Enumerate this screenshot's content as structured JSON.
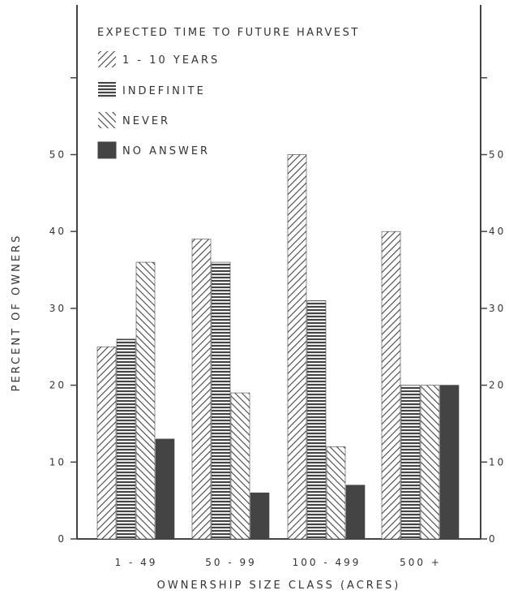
{
  "chart_data": {
    "type": "bar",
    "title": "",
    "xlabel": "OWNERSHIP SIZE CLASS (ACRES)",
    "ylabel": "PERCENT OF OWNERS",
    "ylim": [
      0,
      60
    ],
    "yticks": [
      0,
      10,
      20,
      30,
      40,
      50
    ],
    "categories": [
      "1 - 49",
      "50 - 99",
      "100 - 499",
      "500 +"
    ],
    "legend_title": "EXPECTED TIME TO FUTURE HARVEST",
    "legend_position": "top-left",
    "series": [
      {
        "name": "1 - 10 YEARS",
        "pattern": "diagonal-up",
        "values": [
          25,
          39,
          50,
          40
        ]
      },
      {
        "name": "INDEFINITE",
        "pattern": "horizontal",
        "values": [
          26,
          36,
          31,
          20
        ]
      },
      {
        "name": "NEVER",
        "pattern": "diagonal-down",
        "values": [
          36,
          19,
          12,
          20
        ]
      },
      {
        "name": "NO ANSWER",
        "pattern": "solid",
        "values": [
          13,
          6,
          7,
          20
        ]
      }
    ],
    "grid": false,
    "color": "#444444"
  }
}
